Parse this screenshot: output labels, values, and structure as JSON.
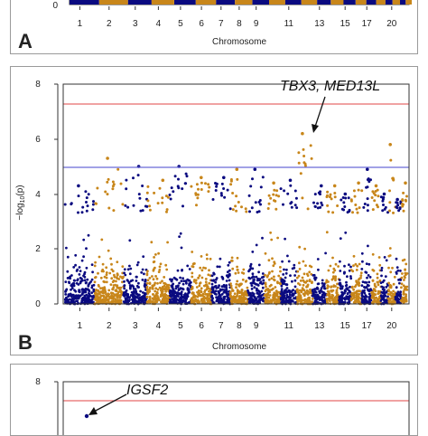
{
  "panels": [
    {
      "letter": "A",
      "xlabel": "Chromosome",
      "chromosome_tick_labels": [
        "1",
        "2",
        "3",
        "4",
        "5",
        "6",
        "7",
        "8",
        "9",
        "11",
        "13",
        "15",
        "17",
        "20"
      ]
    },
    {
      "letter": "B",
      "xlabel": "Chromosome",
      "ylabel_prefix": "−log",
      "ylabel_sub": "10",
      "ylabel_suffix": "(p)",
      "annotation": "TBX3, MED13L"
    },
    {
      "letter": "",
      "annotation": "IGSF2"
    }
  ],
  "colors": {
    "navy": "#0a0a80",
    "gold": "#c8861a",
    "genome_wide_line": "#e86a6a",
    "suggestive_line": "#6b6bd8",
    "frame": "#9a9a9a",
    "text": "#222222"
  },
  "chart_data": [
    {
      "type": "scatter",
      "subtype": "manhattan",
      "panel": "A",
      "xlabel": "Chromosome",
      "x_tick_labels": [
        "1",
        "2",
        "3",
        "4",
        "5",
        "6",
        "7",
        "8",
        "9",
        "11",
        "13",
        "15",
        "17",
        "20"
      ],
      "y_tick_labels": [
        "0"
      ]
    },
    {
      "type": "scatter",
      "subtype": "manhattan",
      "panel": "B",
      "xlabel": "Chromosome",
      "ylabel": "−log10(p)",
      "ylim": [
        0,
        8
      ],
      "y_ticks": [
        0,
        2,
        4,
        6,
        8
      ],
      "x_tick_labels": [
        "1",
        "2",
        "3",
        "4",
        "5",
        "6",
        "7",
        "8",
        "9",
        "11",
        "13",
        "15",
        "17",
        "20"
      ],
      "genome_wide_threshold": 7.3,
      "suggestive_threshold": 5.0,
      "chromosomes": [
        {
          "chr": 1,
          "size": 249,
          "peak": 4.3,
          "color": "navy"
        },
        {
          "chr": 2,
          "size": 243,
          "peak": 5.3,
          "color": "gold"
        },
        {
          "chr": 3,
          "size": 198,
          "peak": 5.0,
          "color": "navy"
        },
        {
          "chr": 4,
          "size": 191,
          "peak": 4.5,
          "color": "gold"
        },
        {
          "chr": 5,
          "size": 181,
          "peak": 5.0,
          "color": "navy"
        },
        {
          "chr": 6,
          "size": 171,
          "peak": 4.6,
          "color": "gold"
        },
        {
          "chr": 7,
          "size": 159,
          "peak": 4.6,
          "color": "navy"
        },
        {
          "chr": 8,
          "size": 146,
          "peak": 4.9,
          "color": "gold"
        },
        {
          "chr": 9,
          "size": 141,
          "peak": 4.9,
          "color": "navy"
        },
        {
          "chr": 10,
          "size": 136,
          "peak": 4.4,
          "color": "gold"
        },
        {
          "chr": 11,
          "size": 135,
          "peak": 4.5,
          "color": "navy"
        },
        {
          "chr": 12,
          "size": 133,
          "peak": 6.2,
          "color": "gold"
        },
        {
          "chr": 13,
          "size": 115,
          "peak": 4.3,
          "color": "navy"
        },
        {
          "chr": 14,
          "size": 107,
          "peak": 4.3,
          "color": "gold"
        },
        {
          "chr": 15,
          "size": 102,
          "peak": 4.0,
          "color": "navy"
        },
        {
          "chr": 16,
          "size": 90,
          "peak": 4.4,
          "color": "gold"
        },
        {
          "chr": 17,
          "size": 83,
          "peak": 4.9,
          "color": "navy"
        },
        {
          "chr": 18,
          "size": 78,
          "peak": 4.3,
          "color": "gold"
        },
        {
          "chr": 19,
          "size": 59,
          "peak": 4.0,
          "color": "navy"
        },
        {
          "chr": 20,
          "size": 63,
          "peak": 5.8,
          "color": "gold"
        },
        {
          "chr": 21,
          "size": 48,
          "peak": 3.8,
          "color": "navy"
        },
        {
          "chr": 22,
          "size": 51,
          "peak": 4.4,
          "color": "gold"
        }
      ],
      "annotations": [
        {
          "text": "TBX3, MED13L",
          "chr": 12,
          "value": 6.2
        }
      ]
    },
    {
      "type": "scatter",
      "subtype": "manhattan",
      "panel": "C",
      "y_tick_labels": [
        "8"
      ],
      "genome_wide_threshold": 7.3,
      "annotations": [
        {
          "text": "IGSF2",
          "chr": 1,
          "value": 6.9
        }
      ]
    }
  ]
}
